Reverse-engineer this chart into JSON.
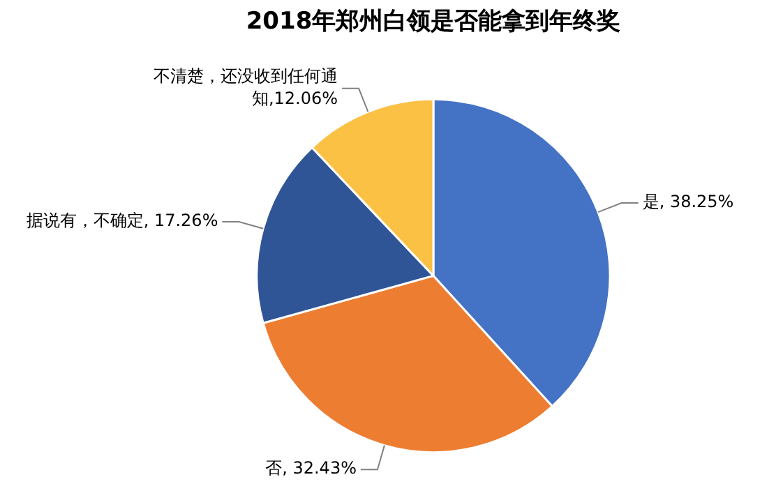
{
  "chart_data": {
    "type": "pie",
    "title": "2018年郑州白领是否能拿到年终奖",
    "categories": [
      "是",
      "否",
      "据说有，不确定",
      "不清楚，还没收到任何通知"
    ],
    "values": [
      38.25,
      32.43,
      17.26,
      12.06
    ],
    "colors": [
      "#4472c4",
      "#ed7d31",
      "#2f5597",
      "#fbc144"
    ],
    "value_labels": [
      ", 38.25%",
      ", 32.43%",
      ", 17.26%",
      ",12.06%"
    ],
    "data_labels": true,
    "legend": false
  }
}
